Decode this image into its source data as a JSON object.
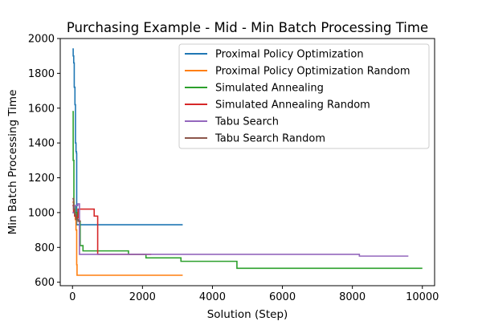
{
  "chart_data": {
    "type": "line",
    "title": "Purchasing Example - Mid - Min Batch Processing Time",
    "xlabel": "Solution (Step)",
    "ylabel": "Min Batch Processing Time",
    "xlim": [
      -350,
      10350
    ],
    "ylim": [
      580,
      2000
    ],
    "xticks": [
      0,
      2000,
      4000,
      6000,
      8000,
      10000
    ],
    "yticks": [
      600,
      800,
      1000,
      1200,
      1400,
      1600,
      1800,
      2000
    ],
    "xtick_labels": [
      "0",
      "2000",
      "4000",
      "6000",
      "8000",
      "10000"
    ],
    "ytick_labels": [
      "600",
      "800",
      "1000",
      "1200",
      "1400",
      "1600",
      "1800",
      "2000"
    ],
    "grid": false,
    "legend_position": "upper-right",
    "series": [
      {
        "name": "Proximal Policy Optimization",
        "color": "#1f77b4",
        "points": [
          [
            0,
            1940
          ],
          [
            20,
            1900
          ],
          [
            35,
            1860
          ],
          [
            50,
            1720
          ],
          [
            70,
            1620
          ],
          [
            85,
            1400
          ],
          [
            100,
            1350
          ],
          [
            115,
            1340
          ],
          [
            120,
            930
          ],
          [
            3150,
            930
          ]
        ]
      },
      {
        "name": "Proximal Policy Optimization Random",
        "color": "#ff7f0e",
        "points": [
          [
            0,
            1060
          ],
          [
            40,
            1000
          ],
          [
            80,
            960
          ],
          [
            100,
            900
          ],
          [
            120,
            700
          ],
          [
            130,
            640
          ],
          [
            3150,
            640
          ]
        ]
      },
      {
        "name": "Simulated Annealing",
        "color": "#2ca02c",
        "points": [
          [
            0,
            1580
          ],
          [
            20,
            1300
          ],
          [
            40,
            1040
          ],
          [
            80,
            1000
          ],
          [
            140,
            960
          ],
          [
            180,
            950
          ],
          [
            220,
            810
          ],
          [
            300,
            780
          ],
          [
            1600,
            760
          ],
          [
            2100,
            740
          ],
          [
            3100,
            720
          ],
          [
            4700,
            680
          ],
          [
            10000,
            680
          ]
        ]
      },
      {
        "name": "Simulated Annealing Random",
        "color": "#d62728",
        "points": [
          [
            0,
            1040
          ],
          [
            30,
            1000
          ],
          [
            60,
            980
          ],
          [
            100,
            970
          ],
          [
            160,
            1020
          ],
          [
            620,
            980
          ],
          [
            720,
            760
          ],
          [
            1700,
            760
          ],
          [
            2250,
            760
          ]
        ]
      },
      {
        "name": "Tabu Search",
        "color": "#9467bd",
        "points": [
          [
            0,
            1000
          ],
          [
            60,
            1040
          ],
          [
            150,
            1050
          ],
          [
            200,
            760
          ],
          [
            2100,
            760
          ],
          [
            8200,
            750
          ],
          [
            9600,
            750
          ]
        ]
      },
      {
        "name": "Tabu Search Random",
        "color": "#8c564b",
        "points": [
          [
            0,
            1080
          ],
          [
            30,
            1020
          ],
          [
            60,
            990
          ],
          [
            100,
            960
          ],
          [
            160,
            950
          ],
          [
            220,
            955
          ]
        ]
      }
    ]
  }
}
